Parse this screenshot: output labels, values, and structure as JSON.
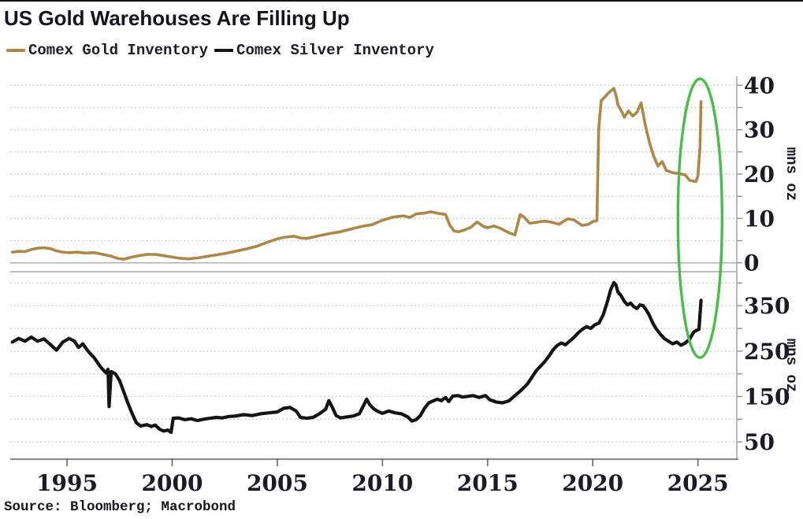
{
  "title": "US Gold Warehouses Are Filling Up",
  "source": "Source: Bloomberg; Macrobond",
  "legend": [
    {
      "label": "Comex Gold Inventory",
      "color": "#ad8747"
    },
    {
      "label": "Comex Silver Inventory",
      "color": "#141414"
    }
  ],
  "colors": {
    "gold_line": "#ad8747",
    "silver_line": "#141414",
    "highlight_green": "#4cbb4c",
    "grid": "#c6c6c6",
    "axis": "#a8a8a8",
    "tick_text": "#1b1b28",
    "background": "#ffffff"
  },
  "x_axis": {
    "xlim": [
      1992.3,
      2026.85
    ],
    "ticks": [
      1995,
      2000,
      2005,
      2010,
      2015,
      2020,
      2025
    ]
  },
  "annotation": {
    "shape": "ellipse",
    "color": "#4cbb4c",
    "center_year": 2025.1,
    "note": "green ellipse highlighting the 2025 spike in both panels"
  },
  "chart_data": [
    {
      "type": "line",
      "panel": "top",
      "ylabel": "mns oz",
      "ylim": [
        -2,
        42
      ],
      "yticks": [
        0,
        10,
        20,
        30,
        40
      ],
      "yticks_minor": [
        5,
        15,
        25,
        35
      ],
      "grid": "dotted-horizontal",
      "series": [
        {
          "name": "Comex Gold Inventory",
          "color": "#ad8747",
          "points": [
            [
              1992.4,
              2.4
            ],
            [
              1992.7,
              2.6
            ],
            [
              1993.0,
              2.5
            ],
            [
              1993.3,
              3.0
            ],
            [
              1993.6,
              3.3
            ],
            [
              1993.9,
              3.4
            ],
            [
              1994.2,
              3.2
            ],
            [
              1994.5,
              2.7
            ],
            [
              1994.8,
              2.4
            ],
            [
              1995.1,
              2.3
            ],
            [
              1995.5,
              2.4
            ],
            [
              1995.9,
              2.2
            ],
            [
              1996.3,
              2.3
            ],
            [
              1996.7,
              1.9
            ],
            [
              1997.1,
              1.5
            ],
            [
              1997.4,
              1.0
            ],
            [
              1997.7,
              0.8
            ],
            [
              1998.0,
              1.2
            ],
            [
              1998.4,
              1.6
            ],
            [
              1998.8,
              1.9
            ],
            [
              1999.2,
              1.9
            ],
            [
              1999.6,
              1.6
            ],
            [
              2000.0,
              1.3
            ],
            [
              2000.4,
              1.0
            ],
            [
              2000.8,
              0.9
            ],
            [
              2001.2,
              1.1
            ],
            [
              2001.6,
              1.4
            ],
            [
              2002.0,
              1.7
            ],
            [
              2002.5,
              2.1
            ],
            [
              2003.0,
              2.6
            ],
            [
              2003.5,
              3.1
            ],
            [
              2004.0,
              3.7
            ],
            [
              2004.5,
              4.6
            ],
            [
              2005.0,
              5.4
            ],
            [
              2005.4,
              5.8
            ],
            [
              2005.8,
              6.0
            ],
            [
              2006.1,
              5.6
            ],
            [
              2006.4,
              5.5
            ],
            [
              2006.7,
              5.8
            ],
            [
              2007.0,
              6.1
            ],
            [
              2007.5,
              6.6
            ],
            [
              2008.0,
              7.0
            ],
            [
              2008.5,
              7.6
            ],
            [
              2009.0,
              8.2
            ],
            [
              2009.5,
              8.6
            ],
            [
              2010.0,
              9.6
            ],
            [
              2010.5,
              10.3
            ],
            [
              2011.0,
              10.6
            ],
            [
              2011.3,
              10.2
            ],
            [
              2011.6,
              11.0
            ],
            [
              2012.0,
              11.2
            ],
            [
              2012.3,
              11.5
            ],
            [
              2012.7,
              11.1
            ],
            [
              2013.0,
              10.9
            ],
            [
              2013.2,
              8.5
            ],
            [
              2013.4,
              7.2
            ],
            [
              2013.6,
              7.0
            ],
            [
              2013.9,
              7.4
            ],
            [
              2014.2,
              8.0
            ],
            [
              2014.5,
              9.2
            ],
            [
              2014.8,
              8.2
            ],
            [
              2015.0,
              7.9
            ],
            [
              2015.3,
              8.3
            ],
            [
              2015.6,
              7.8
            ],
            [
              2016.0,
              6.8
            ],
            [
              2016.3,
              6.3
            ],
            [
              2016.55,
              10.9
            ],
            [
              2016.75,
              10.2
            ],
            [
              2017.0,
              8.9
            ],
            [
              2017.3,
              9.1
            ],
            [
              2017.7,
              9.4
            ],
            [
              2018.0,
              9.2
            ],
            [
              2018.4,
              8.7
            ],
            [
              2018.8,
              9.9
            ],
            [
              2019.1,
              9.7
            ],
            [
              2019.5,
              8.4
            ],
            [
              2019.8,
              8.7
            ],
            [
              2020.0,
              9.3
            ],
            [
              2020.2,
              9.5
            ],
            [
              2020.28,
              30.0
            ],
            [
              2020.4,
              36.5
            ],
            [
              2020.6,
              37.5
            ],
            [
              2020.8,
              38.5
            ],
            [
              2021.0,
              39.3
            ],
            [
              2021.1,
              37.8
            ],
            [
              2021.2,
              35.6
            ],
            [
              2021.4,
              33.9
            ],
            [
              2021.5,
              32.8
            ],
            [
              2021.7,
              34.2
            ],
            [
              2021.9,
              33.1
            ],
            [
              2022.1,
              33.9
            ],
            [
              2022.3,
              36.0
            ],
            [
              2022.5,
              31.0
            ],
            [
              2022.7,
              27.0
            ],
            [
              2022.9,
              24.0
            ],
            [
              2023.1,
              21.8
            ],
            [
              2023.3,
              22.8
            ],
            [
              2023.5,
              20.8
            ],
            [
              2023.8,
              20.3
            ],
            [
              2024.1,
              20.1
            ],
            [
              2024.4,
              19.8
            ],
            [
              2024.6,
              18.6
            ],
            [
              2024.9,
              18.3
            ],
            [
              2025.0,
              19.5
            ],
            [
              2025.1,
              26.0
            ],
            [
              2025.15,
              36.3
            ]
          ]
        }
      ]
    },
    {
      "type": "line",
      "panel": "bottom",
      "ylabel": "mns oz",
      "ylim": [
        12,
        425
      ],
      "yticks": [
        50,
        150,
        250,
        350
      ],
      "yticks_minor": [
        100,
        200,
        300,
        400
      ],
      "grid": "dotted-horizontal",
      "series": [
        {
          "name": "Comex Silver Inventory",
          "color": "#141414",
          "points": [
            [
              1992.4,
              270
            ],
            [
              1992.7,
              278
            ],
            [
              1993.0,
              272
            ],
            [
              1993.3,
              281
            ],
            [
              1993.6,
              272
            ],
            [
              1993.9,
              277
            ],
            [
              1994.2,
              265
            ],
            [
              1994.5,
              252
            ],
            [
              1994.8,
              270
            ],
            [
              1995.1,
              278
            ],
            [
              1995.35,
              272
            ],
            [
              1995.55,
              258
            ],
            [
              1995.75,
              266
            ],
            [
              1996.0,
              250
            ],
            [
              1996.3,
              235
            ],
            [
              1996.6,
              215
            ],
            [
              1996.85,
              202
            ],
            [
              1996.95,
              210
            ],
            [
              1997.0,
              128
            ],
            [
              1997.1,
              205
            ],
            [
              1997.3,
              200
            ],
            [
              1997.5,
              185
            ],
            [
              1997.7,
              160
            ],
            [
              1997.9,
              135
            ],
            [
              1998.1,
              112
            ],
            [
              1998.3,
              92
            ],
            [
              1998.5,
              85
            ],
            [
              1998.8,
              88
            ],
            [
              1999.0,
              84
            ],
            [
              1999.2,
              87
            ],
            [
              1999.4,
              78
            ],
            [
              1999.6,
              74
            ],
            [
              1999.8,
              76
            ],
            [
              1999.95,
              71
            ],
            [
              2000.05,
              102
            ],
            [
              2000.3,
              103
            ],
            [
              2000.6,
              99
            ],
            [
              2000.9,
              101
            ],
            [
              2001.2,
              97
            ],
            [
              2001.5,
              100
            ],
            [
              2001.8,
              102
            ],
            [
              2002.1,
              104
            ],
            [
              2002.4,
              103
            ],
            [
              2002.7,
              106
            ],
            [
              2003.0,
              107
            ],
            [
              2003.4,
              110
            ],
            [
              2003.8,
              108
            ],
            [
              2004.2,
              112
            ],
            [
              2004.6,
              114
            ],
            [
              2005.0,
              116
            ],
            [
              2005.3,
              124
            ],
            [
              2005.6,
              126
            ],
            [
              2005.9,
              118
            ],
            [
              2006.1,
              104
            ],
            [
              2006.4,
              102
            ],
            [
              2006.7,
              104
            ],
            [
              2007.0,
              112
            ],
            [
              2007.3,
              122
            ],
            [
              2007.45,
              141
            ],
            [
              2007.6,
              128
            ],
            [
              2007.8,
              108
            ],
            [
              2008.0,
              103
            ],
            [
              2008.3,
              105
            ],
            [
              2008.6,
              107
            ],
            [
              2008.9,
              112
            ],
            [
              2009.1,
              130
            ],
            [
              2009.25,
              144
            ],
            [
              2009.4,
              132
            ],
            [
              2009.6,
              122
            ],
            [
              2009.8,
              117
            ],
            [
              2010.0,
              113
            ],
            [
              2010.3,
              118
            ],
            [
              2010.6,
              114
            ],
            [
              2010.9,
              112
            ],
            [
              2011.2,
              105
            ],
            [
              2011.4,
              96
            ],
            [
              2011.6,
              99
            ],
            [
              2011.8,
              108
            ],
            [
              2012.0,
              124
            ],
            [
              2012.2,
              136
            ],
            [
              2012.4,
              140
            ],
            [
              2012.6,
              144
            ],
            [
              2012.8,
              141
            ],
            [
              2013.0,
              148
            ],
            [
              2013.15,
              139
            ],
            [
              2013.35,
              151
            ],
            [
              2013.6,
              152
            ],
            [
              2013.8,
              149
            ],
            [
              2014.0,
              150
            ],
            [
              2014.3,
              152
            ],
            [
              2014.6,
              148
            ],
            [
              2014.9,
              152
            ],
            [
              2015.1,
              143
            ],
            [
              2015.4,
              138
            ],
            [
              2015.7,
              136
            ],
            [
              2016.0,
              140
            ],
            [
              2016.3,
              152
            ],
            [
              2016.6,
              164
            ],
            [
              2016.9,
              178
            ],
            [
              2017.1,
              192
            ],
            [
              2017.3,
              206
            ],
            [
              2017.5,
              216
            ],
            [
              2017.7,
              226
            ],
            [
              2017.9,
              238
            ],
            [
              2018.1,
              252
            ],
            [
              2018.3,
              262
            ],
            [
              2018.5,
              268
            ],
            [
              2018.7,
              264
            ],
            [
              2018.9,
              272
            ],
            [
              2019.1,
              280
            ],
            [
              2019.3,
              290
            ],
            [
              2019.5,
              298
            ],
            [
              2019.7,
              304
            ],
            [
              2019.9,
              300
            ],
            [
              2020.1,
              308
            ],
            [
              2020.3,
              312
            ],
            [
              2020.5,
              330
            ],
            [
              2020.7,
              360
            ],
            [
              2020.85,
              385
            ],
            [
              2021.0,
              401
            ],
            [
              2021.1,
              396
            ],
            [
              2021.2,
              380
            ],
            [
              2021.35,
              372
            ],
            [
              2021.5,
              360
            ],
            [
              2021.65,
              352
            ],
            [
              2021.8,
              356
            ],
            [
              2021.95,
              348
            ],
            [
              2022.1,
              344
            ],
            [
              2022.25,
              352
            ],
            [
              2022.4,
              350
            ],
            [
              2022.55,
              340
            ],
            [
              2022.7,
              328
            ],
            [
              2022.85,
              312
            ],
            [
              2023.0,
              300
            ],
            [
              2023.2,
              288
            ],
            [
              2023.4,
              278
            ],
            [
              2023.6,
              272
            ],
            [
              2023.8,
              266
            ],
            [
              2024.0,
              270
            ],
            [
              2024.2,
              263
            ],
            [
              2024.4,
              268
            ],
            [
              2024.6,
              276
            ],
            [
              2024.8,
              292
            ],
            [
              2024.95,
              296
            ],
            [
              2025.05,
              298
            ],
            [
              2025.15,
              362
            ]
          ]
        }
      ]
    }
  ]
}
